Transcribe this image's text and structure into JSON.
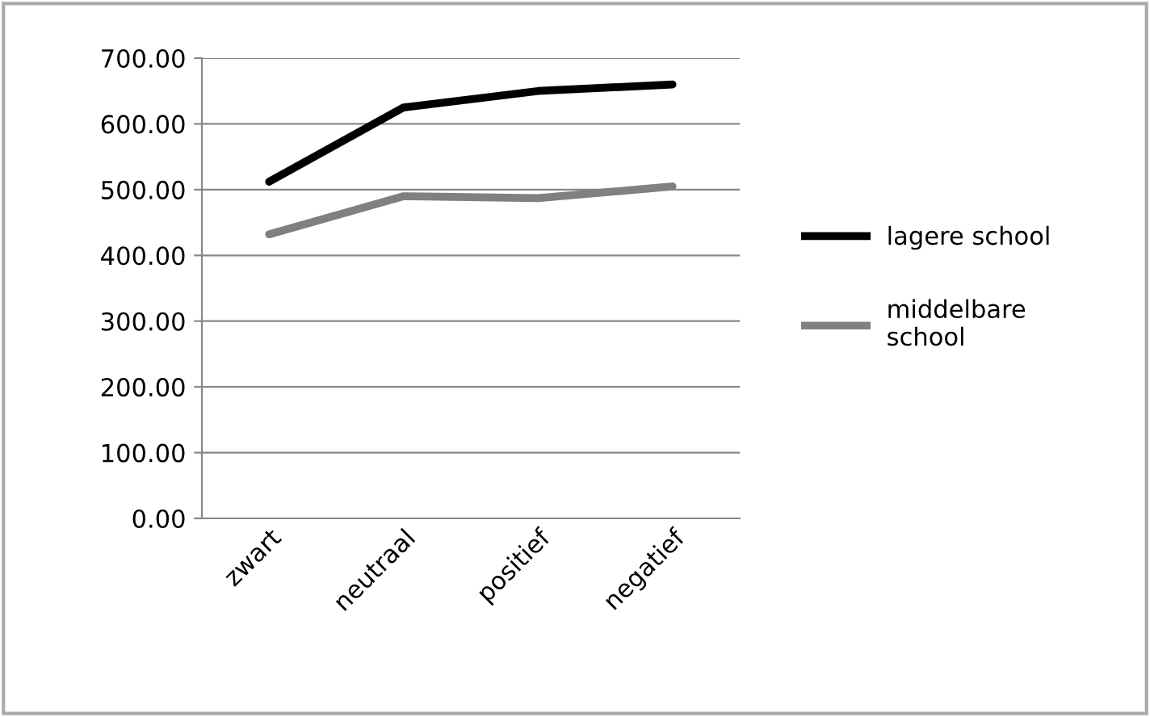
{
  "chart_data": {
    "type": "line",
    "categories": [
      "zwart",
      "neutraal",
      "positief",
      "negatief"
    ],
    "series": [
      {
        "name": "lagere school",
        "color": "#000000",
        "values": [
          512,
          625,
          650,
          660
        ]
      },
      {
        "name": "middelbare school",
        "color": "#808080",
        "values": [
          432,
          490,
          487,
          505
        ]
      }
    ],
    "ylim": [
      0,
      700
    ],
    "yticks": [
      {
        "value": 0,
        "label": "0.00"
      },
      {
        "value": 100,
        "label": "100.00"
      },
      {
        "value": 200,
        "label": "200.00"
      },
      {
        "value": 300,
        "label": "300.00"
      },
      {
        "value": 400,
        "label": "400.00"
      },
      {
        "value": 500,
        "label": "500.00"
      },
      {
        "value": 600,
        "label": "600.00"
      },
      {
        "value": 700,
        "label": "700.00"
      }
    ],
    "grid": "y",
    "legend": "right",
    "marker": "none",
    "line_style": "solid"
  }
}
